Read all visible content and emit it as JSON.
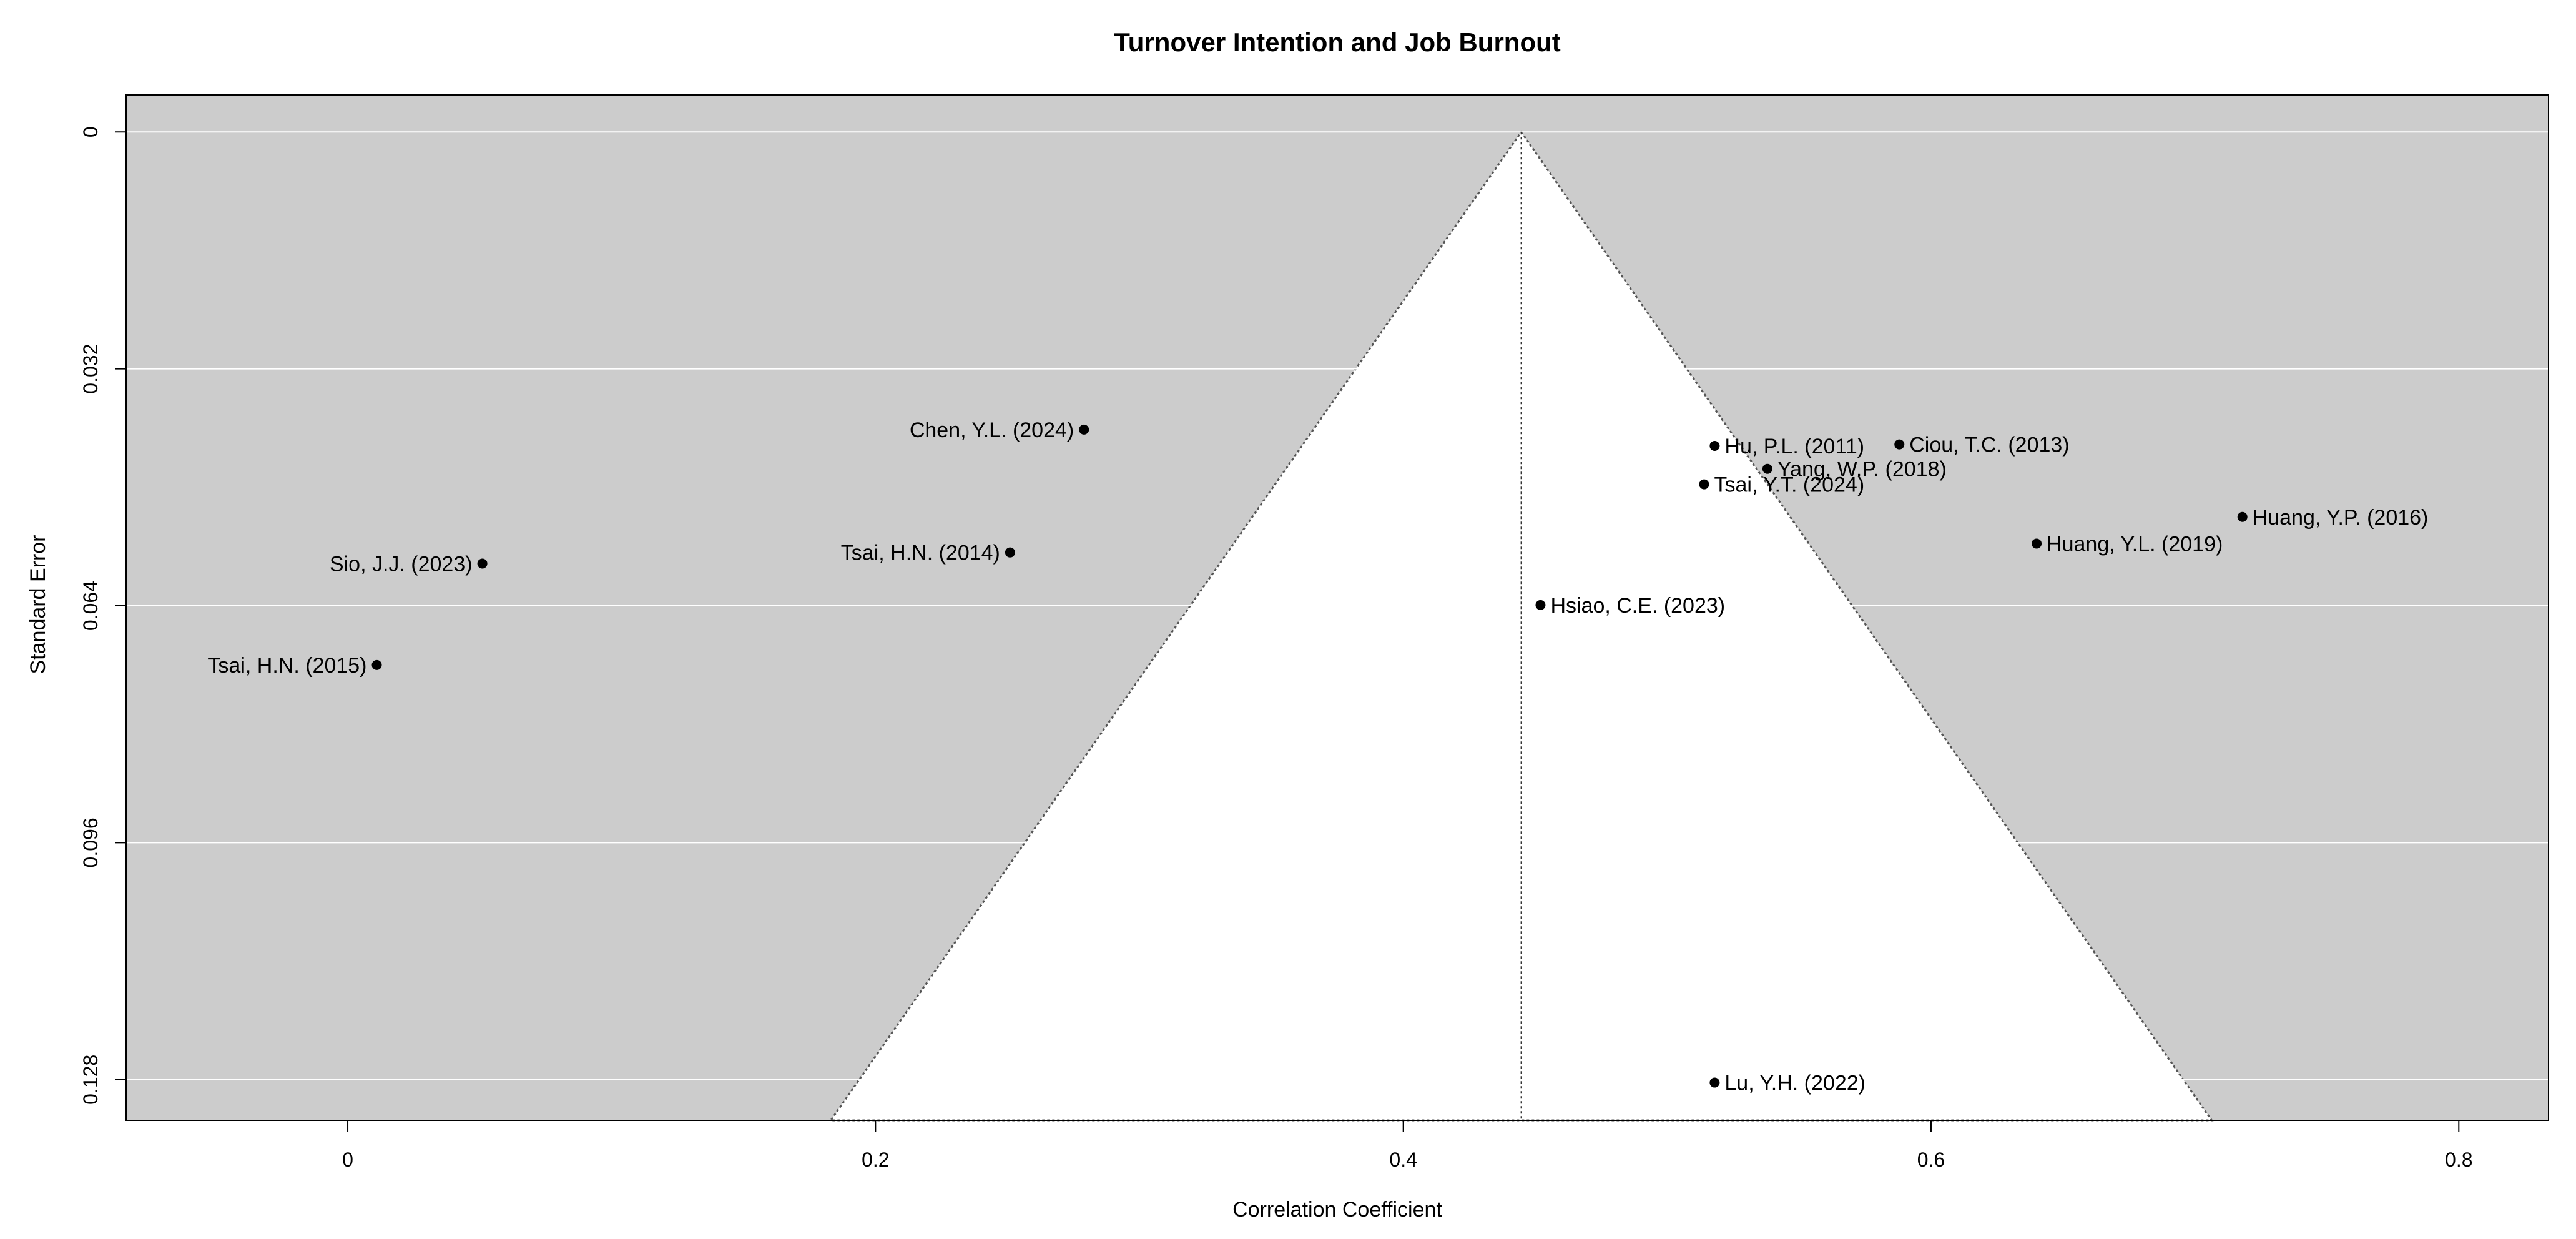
{
  "chart_data": {
    "type": "scatter",
    "title": "Turnover Intention and Job Burnout",
    "xlabel": "Correlation Coefficient",
    "ylabel": "Standard Error",
    "xlim": [
      -0.084,
      0.834
    ],
    "ylim": [
      0.1335,
      -0.005
    ],
    "y_reversed": true,
    "x_ticks": [
      "0",
      "0.2",
      "0.4",
      "0.6",
      "0.8"
    ],
    "y_ticks": [
      "0",
      "0.032",
      "0.064",
      "0.096",
      "0.128"
    ],
    "grid": "horizontal",
    "background_color": "#cccccc",
    "funnel_fill_color": "#ffffff",
    "point_color": "#000000",
    "funnel": {
      "center": 0.4447,
      "z": 1.96,
      "se_max": 0.1335
    },
    "points": [
      {
        "label": "Chen, Y.L. (2024)",
        "x": 0.279,
        "y": 0.0402,
        "label_side": "left"
      },
      {
        "label": "Tsai, H.N. (2014)",
        "x": 0.251,
        "y": 0.0568,
        "label_side": "left"
      },
      {
        "label": "Sio, J.J. (2023)",
        "x": 0.051,
        "y": 0.0583,
        "label_side": "left"
      },
      {
        "label": "Tsai, H.N. (2015)",
        "x": 0.011,
        "y": 0.072,
        "label_side": "left"
      },
      {
        "label": "Hu, P.L. (2011)",
        "x": 0.518,
        "y": 0.0424,
        "label_side": "right"
      },
      {
        "label": "Ciou, T.C. (2013)",
        "x": 0.588,
        "y": 0.0422,
        "label_side": "right"
      },
      {
        "label": "Yang, W.P. (2018)",
        "x": 0.538,
        "y": 0.0455,
        "label_side": "right"
      },
      {
        "label": "Tsai, Y.T. (2024)",
        "x": 0.514,
        "y": 0.0476,
        "label_side": "right"
      },
      {
        "label": "Huang, Y.P. (2016)",
        "x": 0.718,
        "y": 0.052,
        "label_side": "right"
      },
      {
        "label": "Huang, Y.L. (2019)",
        "x": 0.64,
        "y": 0.0556,
        "label_side": "right"
      },
      {
        "label": "Hsiao, C.E. (2023)",
        "x": 0.452,
        "y": 0.0639,
        "label_side": "right"
      },
      {
        "label": "Lu, Y.H. (2022)",
        "x": 0.518,
        "y": 0.1284,
        "label_side": "right"
      }
    ]
  }
}
